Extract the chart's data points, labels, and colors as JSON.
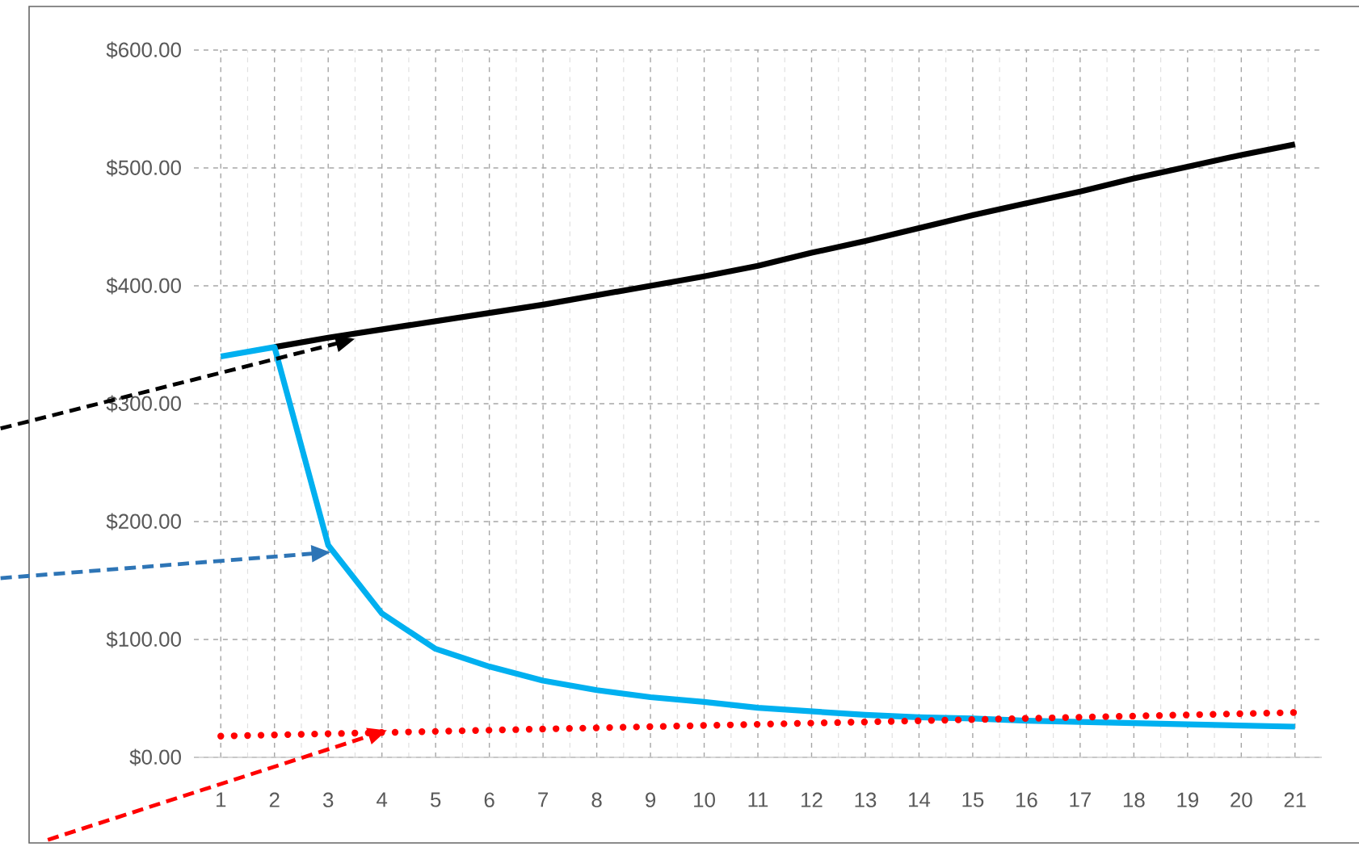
{
  "chart_data": {
    "type": "line",
    "categories": [
      "1",
      "2",
      "3",
      "4",
      "5",
      "6",
      "7",
      "8",
      "9",
      "10",
      "11",
      "12",
      "13",
      "14",
      "15",
      "16",
      "17",
      "18",
      "19",
      "20",
      "21"
    ],
    "series": [
      {
        "color": "#000000",
        "line_style": "solid",
        "values": [
          null,
          348,
          356,
          363,
          370,
          377,
          384,
          392,
          400,
          408,
          417,
          428,
          438,
          449,
          460,
          470,
          480,
          491,
          501,
          511,
          520
        ]
      },
      {
        "color": "#00b0f0",
        "line_style": "solid",
        "values": [
          340,
          348,
          180,
          122,
          92,
          77,
          65,
          57,
          51,
          47,
          42,
          39,
          36,
          34,
          33,
          31,
          30,
          29,
          28,
          27,
          26
        ]
      },
      {
        "color": "#ff0000",
        "line_style": "dotted",
        "values": [
          18,
          19,
          20,
          21,
          22,
          23,
          24,
          25,
          26,
          27,
          28,
          29,
          30,
          31,
          32,
          33,
          34,
          35,
          36,
          37,
          38
        ]
      }
    ],
    "ylim": [
      0,
      600
    ],
    "yticks": [
      {
        "value": 0,
        "label": "$0.00"
      },
      {
        "value": 100,
        "label": "$100.00"
      },
      {
        "value": 200,
        "label": "$200.00"
      },
      {
        "value": 300,
        "label": "$300.00"
      },
      {
        "value": 400,
        "label": "$400.00"
      },
      {
        "value": 500,
        "label": "$500.00"
      },
      {
        "value": 600,
        "label": "$600.00"
      }
    ],
    "grid": true,
    "marker": "none"
  }
}
